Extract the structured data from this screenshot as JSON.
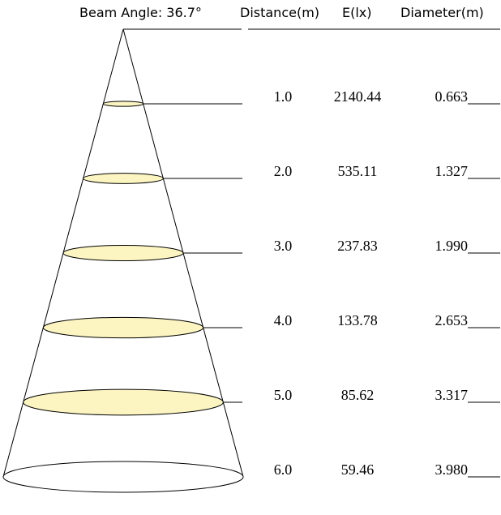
{
  "header": {
    "beam_angle": "Beam Angle: 36.7°",
    "distance": "Distance(m)",
    "illuminance": "E(lx)",
    "diameter": "Diameter(m)"
  },
  "rows": [
    {
      "distance": "1.0",
      "illuminance": "2140.44",
      "diameter": "0.663"
    },
    {
      "distance": "2.0",
      "illuminance": "535.11",
      "diameter": "1.327"
    },
    {
      "distance": "3.0",
      "illuminance": "237.83",
      "diameter": "1.990"
    },
    {
      "distance": "4.0",
      "illuminance": "133.78",
      "diameter": "2.653"
    },
    {
      "distance": "5.0",
      "illuminance": "85.62",
      "diameter": "3.317"
    },
    {
      "distance": "6.0",
      "illuminance": "59.46",
      "diameter": "3.980"
    }
  ],
  "colors": {
    "spot_fill": "#fcf5c2",
    "last_fill": "#ffffff",
    "line": "#000000"
  }
}
